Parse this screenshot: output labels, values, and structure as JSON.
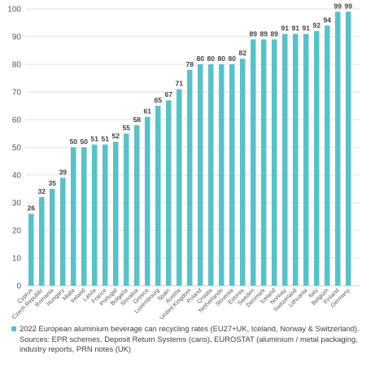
{
  "chart_data": {
    "type": "bar",
    "title": "",
    "xlabel": "",
    "ylabel": "",
    "ylim": [
      0,
      100
    ],
    "yticks": [
      0,
      10,
      20,
      30,
      40,
      50,
      60,
      70,
      80,
      90,
      100
    ],
    "grid": true,
    "legend_placement": "bottom",
    "bar_color": "#5bc0c8",
    "label_color": "#404040",
    "categories": [
      "Cyprus",
      "Czech Republic",
      "Romania",
      "Hungary",
      "Malta",
      "Ireland",
      "Latvia",
      "France",
      "Portugal",
      "Bulgaria",
      "Slovakia",
      "Greece",
      "Luxembourg",
      "Spain",
      "Austria",
      "United Kingdom",
      "Poland",
      "Croatia",
      "Netherlands",
      "Slovenia",
      "Estonia",
      "Sweden",
      "Denmark",
      "Iceland",
      "Norway",
      "Switzerland",
      "Lithuania",
      "Italy",
      "Belgium",
      "Finland",
      "Germany"
    ],
    "series": [
      {
        "name": "2022 European aluminium beverage can recycling rates (EU27+UK, Iceland, Norway & Switzerland). Sources: EPR schemes, Deposit Return Systems (cans), EUROSTAT (aluminium / metal packaging, industry reports, PRN notes (UK)",
        "values": [
          26,
          32,
          35,
          39,
          50,
          50,
          51,
          51,
          52,
          55,
          58,
          61,
          65,
          67,
          71,
          78,
          80,
          80,
          80,
          80,
          82,
          89,
          89,
          89,
          91,
          91,
          91,
          92,
          94,
          99,
          99
        ]
      }
    ]
  }
}
